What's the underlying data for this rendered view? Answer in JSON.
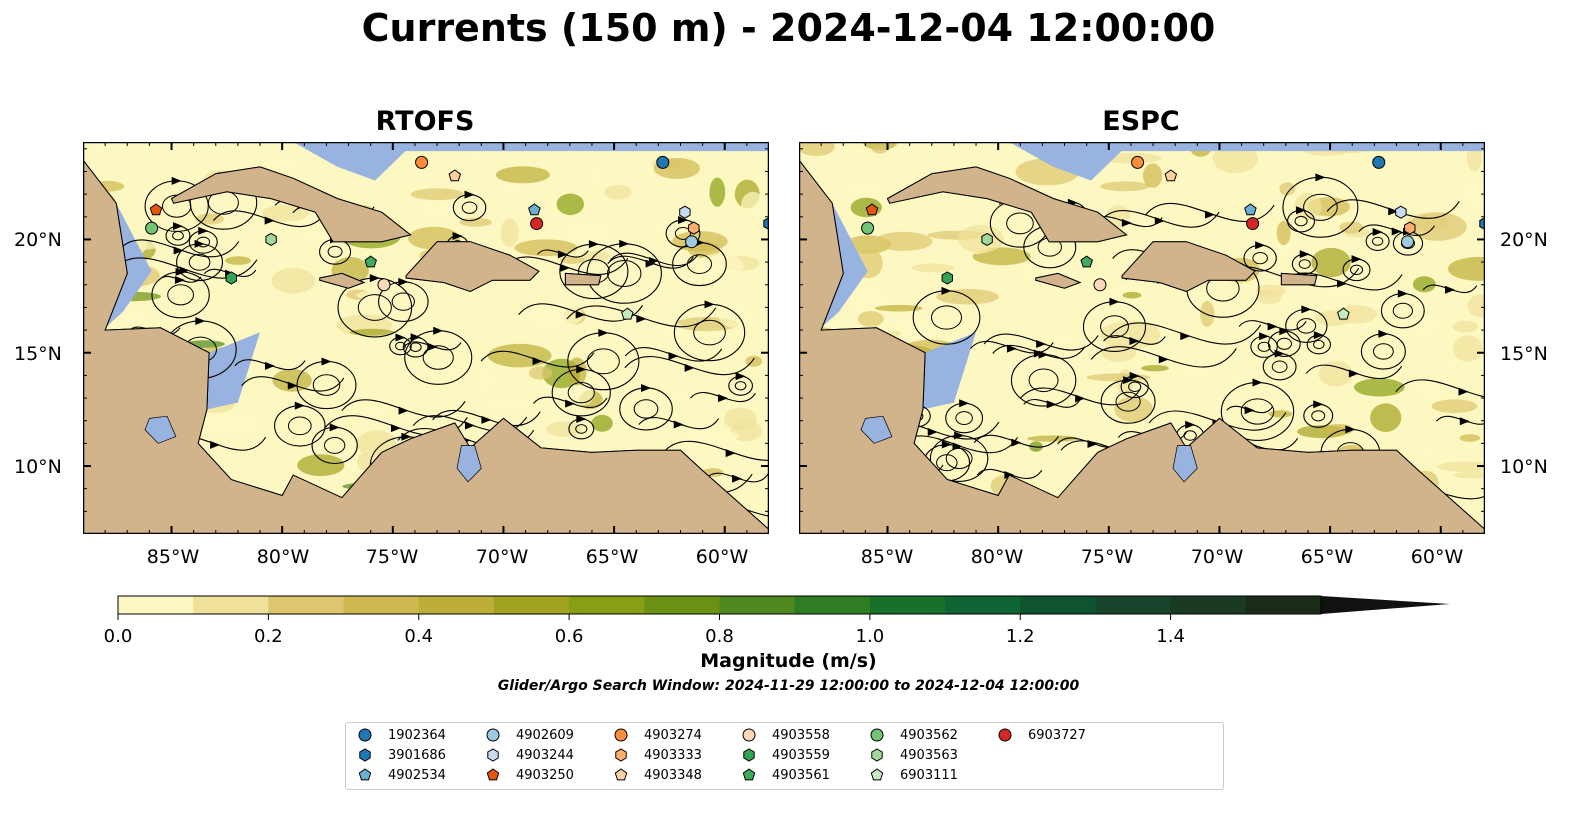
{
  "title": "Currents (150 m) - 2024-12-04 12:00:00",
  "panels": [
    {
      "title": "RTOFS"
    },
    {
      "title": "ESPC"
    }
  ],
  "lat_labels": [
    "20°N",
    "15°N",
    "10°N"
  ],
  "lon_labels": [
    "85°W",
    "80°W",
    "75°W",
    "70°W",
    "65°W",
    "60°W"
  ],
  "colorbar": {
    "label": "Magnitude (m/s)",
    "ticks": [
      "0.0",
      "0.2",
      "0.4",
      "0.6",
      "0.8",
      "1.0",
      "1.2",
      "1.4"
    ],
    "min": 0.0,
    "max": 1.6,
    "extend": "max",
    "colors": [
      "#fdf8c2",
      "#f0e19a",
      "#ddc66e",
      "#cfb84e",
      "#bcae38",
      "#a2a221",
      "#879f13",
      "#6b9112",
      "#4f881e",
      "#2f7d23",
      "#177128",
      "#0e6432",
      "#0f5430",
      "#17452b",
      "#1a3a22",
      "#1a2c18"
    ]
  },
  "search_window": "Glider/Argo Search Window: 2024-11-29 12:00:00 to 2024-12-04 12:00:00",
  "colors": {
    "ocean": "#99b3e0",
    "land": "#d1b48c",
    "water_low": "#fdf8c2"
  },
  "legend": [
    {
      "id": "1902364",
      "marker": "circle",
      "color": "#1f77b4"
    },
    {
      "id": "3901686",
      "marker": "hexagon",
      "color": "#1f77b4"
    },
    {
      "id": "4902534",
      "marker": "pentagon",
      "color": "#6baed6"
    },
    {
      "id": "4902609",
      "marker": "circle",
      "color": "#9ecae1"
    },
    {
      "id": "4903244",
      "marker": "hexagon",
      "color": "#c6dbef"
    },
    {
      "id": "4903250",
      "marker": "pentagon",
      "color": "#e6550d"
    },
    {
      "id": "4903274",
      "marker": "circle",
      "color": "#fd8d3c"
    },
    {
      "id": "4903333",
      "marker": "hexagon",
      "color": "#fdae6b"
    },
    {
      "id": "4903348",
      "marker": "pentagon",
      "color": "#fdd0a2"
    },
    {
      "id": "4903558",
      "marker": "circle",
      "color": "#fdd9b8"
    },
    {
      "id": "4903559",
      "marker": "hexagon",
      "color": "#31a354"
    },
    {
      "id": "4903561",
      "marker": "pentagon",
      "color": "#41ab5d"
    },
    {
      "id": "4903562",
      "marker": "circle",
      "color": "#74c476"
    },
    {
      "id": "4903563",
      "marker": "hexagon",
      "color": "#a1d99b"
    },
    {
      "id": "6903111",
      "marker": "pentagon",
      "color": "#c7e9c0"
    },
    {
      "id": "6903727",
      "marker": "circle",
      "color": "#d62728"
    }
  ],
  "floats": [
    {
      "id": "1902364",
      "lon": -62.8,
      "lat": 23.4
    },
    {
      "id": "3901686",
      "lon": -58.0,
      "lat": 20.7
    },
    {
      "id": "4902534",
      "lon": -68.6,
      "lat": 21.3
    },
    {
      "id": "4902609",
      "lon": -61.5,
      "lat": 19.9
    },
    {
      "id": "4903244",
      "lon": -61.8,
      "lat": 21.2
    },
    {
      "id": "4903250",
      "lon": -85.7,
      "lat": 21.3
    },
    {
      "id": "4903274",
      "lon": -73.7,
      "lat": 23.4
    },
    {
      "id": "4903333",
      "lon": -61.4,
      "lat": 20.5
    },
    {
      "id": "4903348",
      "lon": -72.2,
      "lat": 22.8
    },
    {
      "id": "4903558",
      "lon": -75.4,
      "lat": 18.0
    },
    {
      "id": "4903559",
      "lon": -82.3,
      "lat": 18.3
    },
    {
      "id": "4903561",
      "lon": -76.0,
      "lat": 19.0
    },
    {
      "id": "4903562",
      "lon": -85.9,
      "lat": 20.5
    },
    {
      "id": "4903563",
      "lon": -80.5,
      "lat": 20.0
    },
    {
      "id": "6903111",
      "lon": -64.4,
      "lat": 16.7
    },
    {
      "id": "6903727",
      "lon": -68.5,
      "lat": 20.7
    }
  ]
}
